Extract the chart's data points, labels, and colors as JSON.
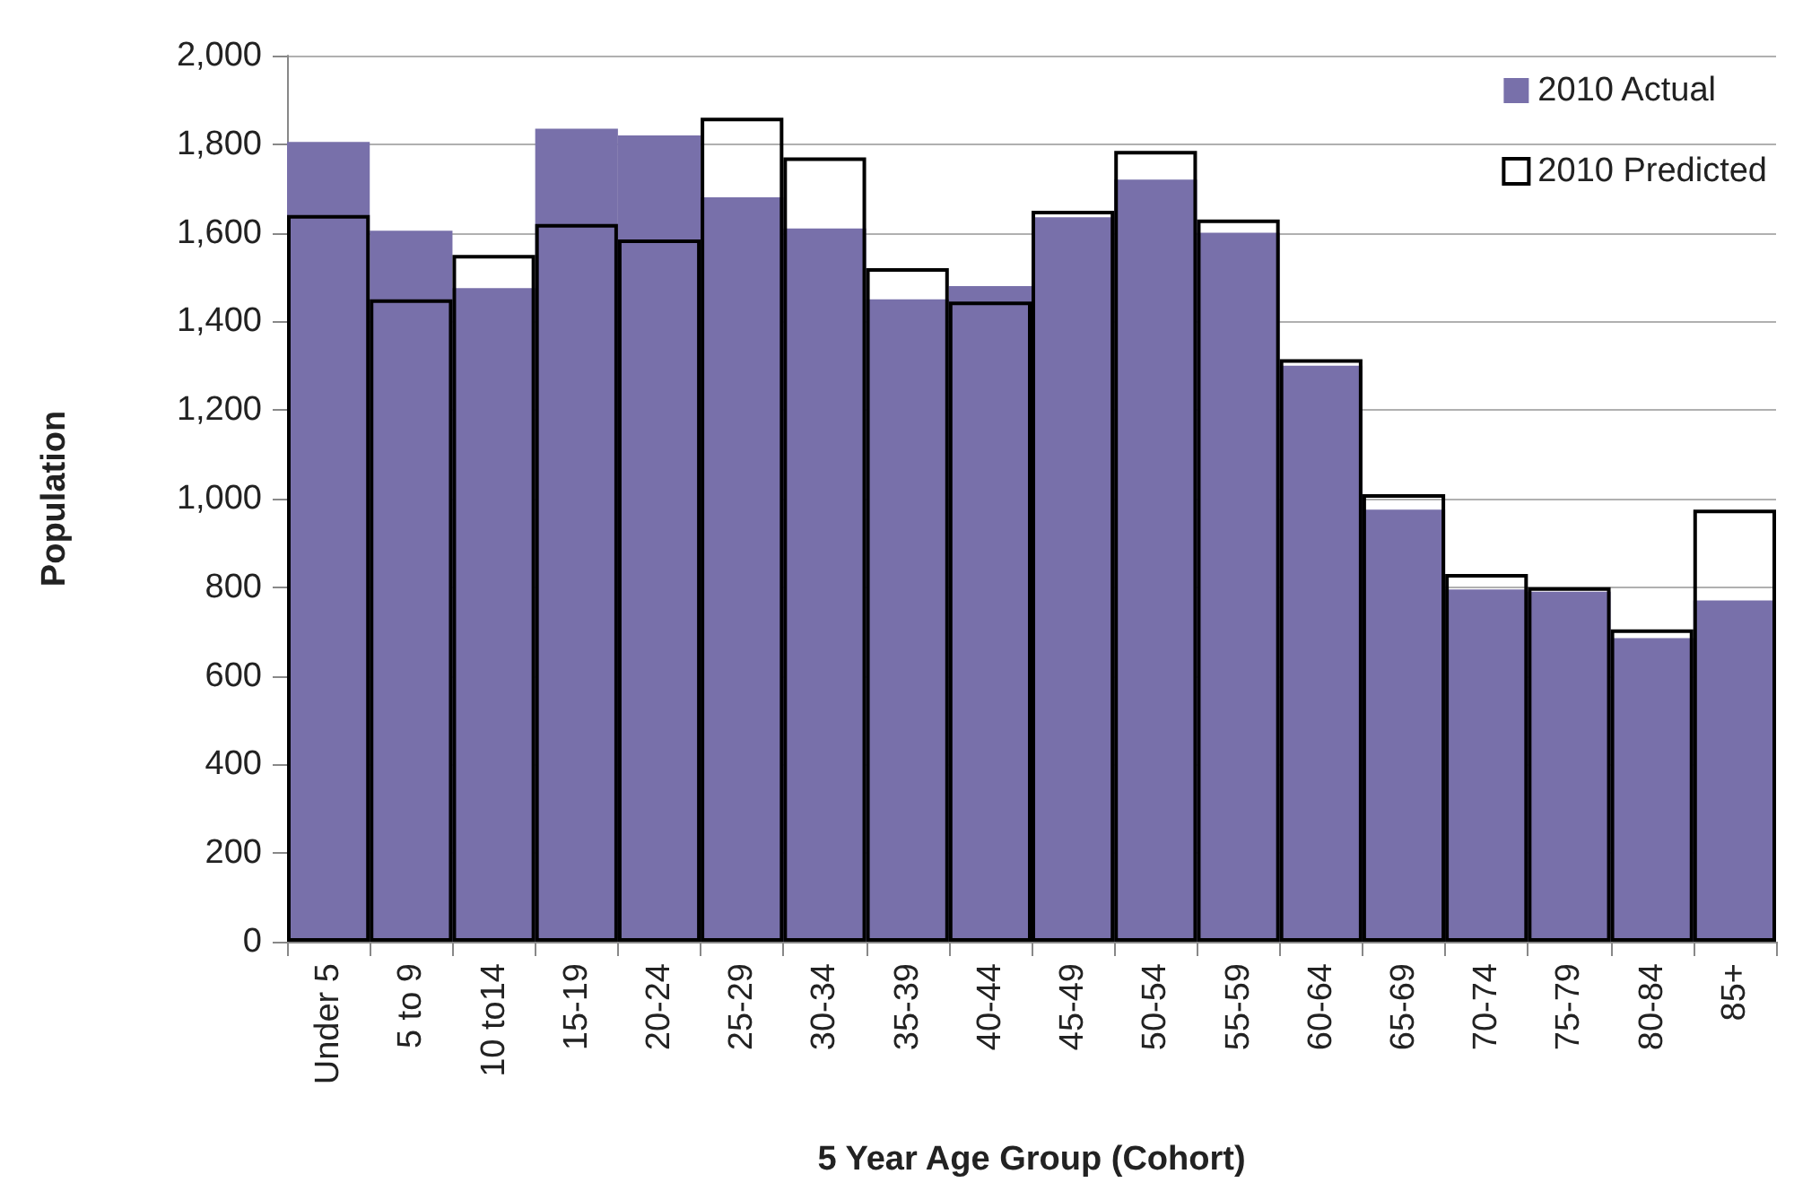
{
  "chart_data": {
    "type": "bar",
    "xlabel": "5 Year Age Group (Cohort)",
    "ylabel": "Population",
    "categories": [
      "Under 5",
      "5 to 9",
      "10 to14",
      "15-19",
      "20-24",
      "25-29",
      "30-34",
      "35-39",
      "40-44",
      "45-49",
      "50-54",
      "55-59",
      "60-64",
      "65-69",
      "70-74",
      "75-79",
      "80-84",
      "85+"
    ],
    "series": [
      {
        "name": "2010 Actual",
        "color": "#7870aa",
        "values": [
          1805,
          1605,
          1475,
          1835,
          1820,
          1680,
          1610,
          1450,
          1480,
          1635,
          1720,
          1600,
          1300,
          975,
          795,
          790,
          685,
          770
        ]
      },
      {
        "name": "2010 Predicted",
        "color": "#000000",
        "values": [
          1640,
          1450,
          1550,
          1620,
          1585,
          1860,
          1770,
          1520,
          1445,
          1650,
          1785,
          1630,
          1315,
          1010,
          830,
          800,
          705,
          975
        ]
      }
    ],
    "ylim": [
      0,
      2000
    ],
    "yticks": [
      0,
      200,
      400,
      600,
      800,
      {
        "value": 1000,
        "label": "1,000"
      },
      {
        "value": 1200,
        "label": "1,200"
      },
      {
        "value": 1400,
        "label": "1,400"
      },
      {
        "value": 1600,
        "label": "1,600"
      },
      {
        "value": 1800,
        "label": "1,800"
      },
      {
        "value": 2000,
        "label": "2,000"
      }
    ],
    "grid": "y",
    "legend": "top right"
  }
}
